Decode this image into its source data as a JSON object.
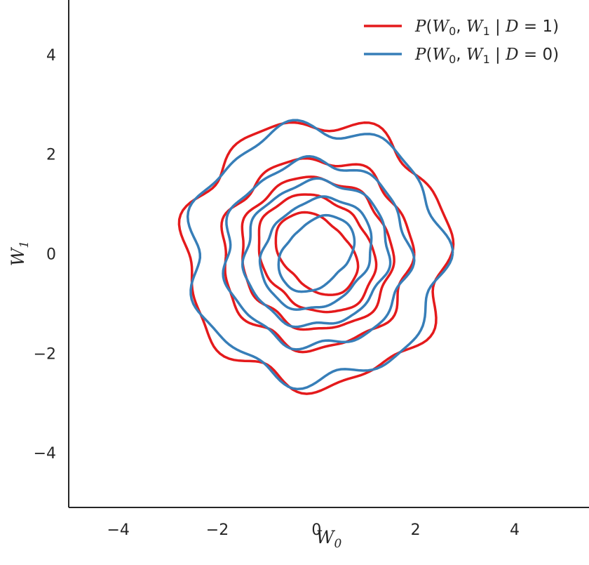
{
  "chart_data": {
    "type": "contour",
    "xlabel": {
      "base": "W",
      "sub": "0"
    },
    "ylabel": {
      "base": "W",
      "sub": "1"
    },
    "xlim": [
      -5,
      5.5
    ],
    "ylim": [
      -5.1,
      5.1
    ],
    "xticks": [
      -4,
      -2,
      0,
      2,
      4
    ],
    "yticks": [
      -4,
      -2,
      0,
      2,
      4
    ],
    "xtick_labels": [
      "−4",
      "−2",
      "0",
      "2",
      "4"
    ],
    "ytick_labels": [
      "−4",
      "−2",
      "0",
      "2",
      "4"
    ],
    "grid": false,
    "legend_position": "top-right",
    "series": [
      {
        "name": "P(W0, W1 | D = 1)",
        "legend": {
          "p": "P",
          "w0": "W",
          "w0sub": "0",
          "w1": "W",
          "w1sub": "1",
          "d": "D",
          "val": "1"
        },
        "color": "#e41a1c",
        "contours": [
          {
            "r": 2.65,
            "aniso": 0,
            "tilt": 0,
            "wobble": 0.05
          },
          {
            "r": 1.9,
            "aniso": 0,
            "tilt": 0,
            "wobble": 0.04
          },
          {
            "r": 1.52,
            "aniso": 0.03,
            "tilt": -0.8,
            "wobble": 0.03
          },
          {
            "r": 1.16,
            "aniso": 0.1,
            "tilt": -0.8,
            "wobble": 0.02
          },
          {
            "r": 0.78,
            "aniso": 0.2,
            "tilt": -0.8,
            "wobble": 0.01
          }
        ]
      },
      {
        "name": "P(W0, W1 | D = 0)",
        "legend": {
          "p": "P",
          "w0": "W",
          "w0sub": "0",
          "w1": "W",
          "w1sub": "1",
          "d": "D",
          "val": "0"
        },
        "color": "#377eb8",
        "contours": [
          {
            "r": 2.55,
            "aniso": 0,
            "tilt": 0,
            "wobble": 0.05
          },
          {
            "r": 1.86,
            "aniso": 0,
            "tilt": 0,
            "wobble": 0.04
          },
          {
            "r": 1.45,
            "aniso": 0.03,
            "tilt": 0.8,
            "wobble": 0.03
          },
          {
            "r": 1.1,
            "aniso": 0.1,
            "tilt": 0.8,
            "wobble": 0.02
          },
          {
            "r": 0.72,
            "aniso": 0.2,
            "tilt": 0.8,
            "wobble": 0.01
          }
        ]
      }
    ]
  }
}
